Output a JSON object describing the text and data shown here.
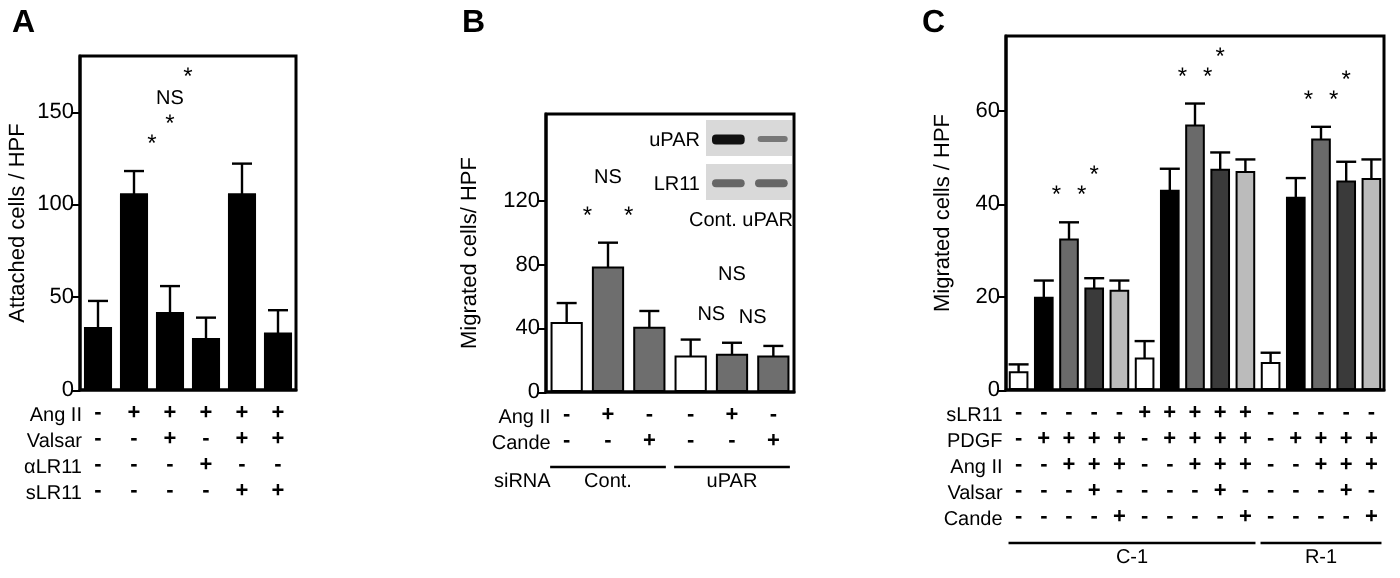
{
  "chart_data": [
    {
      "type": "bar",
      "title": "A",
      "ylabel": "Attached cells / HPF",
      "xlabel": "Ang II\nValsar\nαLR11\nsLR11",
      "categories": [
        "-\n-\n-\n-",
        "+\n-\n-\n-",
        "+\n+\n-\n-",
        "+\n-\n+\n-",
        "+\n+\n-\n+",
        "+\n+\n-\n+"
      ],
      "values": [
        34,
        106,
        42,
        28,
        106,
        31
      ],
      "errors": [
        14,
        12,
        14,
        11,
        16,
        12
      ],
      "colors": [
        "#000000",
        "#000000",
        "#000000",
        "#000000",
        "#000000",
        "#000000"
      ],
      "ylim": [
        0,
        180
      ],
      "yticks": [
        0,
        50,
        100,
        150
      ],
      "annotations": [
        "*",
        "NS",
        "*",
        "*"
      ]
    },
    {
      "type": "bar",
      "title": "B",
      "ylabel": "Migrated cells/ HPF",
      "xlabel": "Ang II\nCande\nsiRNA",
      "categories": [
        "-\n-",
        "+\n-",
        "-\n+",
        "-\n-",
        "+\n-",
        "-\n+"
      ],
      "values": [
        44,
        79,
        41,
        23,
        24,
        23
      ],
      "errors": [
        12,
        15,
        10,
        10,
        7,
        6
      ],
      "colors": [
        "#ffffff",
        "#6e6e6e",
        "#6e6e6e",
        "#ffffff",
        "#6e6e6e",
        "#6e6e6e"
      ],
      "ylim": [
        0,
        175
      ],
      "yticks": [
        0,
        40,
        80,
        120
      ],
      "annotations": [
        "NS",
        "*",
        "*",
        "NS",
        "NS",
        "NS",
        "Cont.",
        "uPAR",
        "uPAR",
        "LR11",
        "Cont. uPAR"
      ]
    },
    {
      "type": "bar",
      "title": "C",
      "ylabel": "Migrated cells / HPF",
      "xlabel": "sLR11\nPDGF\nAng II\nValsar\nCande",
      "categories": [
        "-\n-\n-\n-\n-",
        "-\n+\n-\n-\n-",
        "-\n+\n+\n-\n-",
        "-\n+\n+\n+\n-",
        "-\n+\n+\n-\n+",
        "+\n-\n-\n-\n-",
        "+\n+\n-\n-\n-",
        "+\n+\n+\n-\n-",
        "+\n+\n+\n+\n-",
        "+\n+\n+\n-\n+",
        "-\n-\n-\n-\n-",
        "-\n+\n-\n-\n-",
        "-\n+\n+\n-\n-",
        "-\n+\n+\n+\n-",
        "-\n+\n+\n-\n+"
      ],
      "values": [
        4,
        20,
        32.5,
        22,
        21.5,
        7,
        43,
        57,
        47.5,
        47,
        6,
        41.5,
        54,
        45,
        45.5
      ],
      "errors": [
        1.5,
        3.5,
        3.5,
        2,
        2,
        3.5,
        4.5,
        4.5,
        3.5,
        2.5,
        2,
        4,
        2.5,
        4,
        4
      ],
      "colors": [
        "#ffffff",
        "#000000",
        "#6a6a6a",
        "#3a3a3a",
        "#bbbbbb",
        "#ffffff",
        "#000000",
        "#6a6a6a",
        "#3a3a3a",
        "#bbbbbb",
        "#ffffff",
        "#000000",
        "#6a6a6a",
        "#3a3a3a",
        "#bbbbbb"
      ],
      "ylim": [
        0,
        76
      ],
      "yticks": [
        0,
        20,
        40,
        60
      ],
      "annotations": [
        "*",
        "*",
        "*",
        "*",
        "*",
        "*",
        "*",
        "*",
        "*",
        "C-1",
        "R-1"
      ]
    }
  ]
}
